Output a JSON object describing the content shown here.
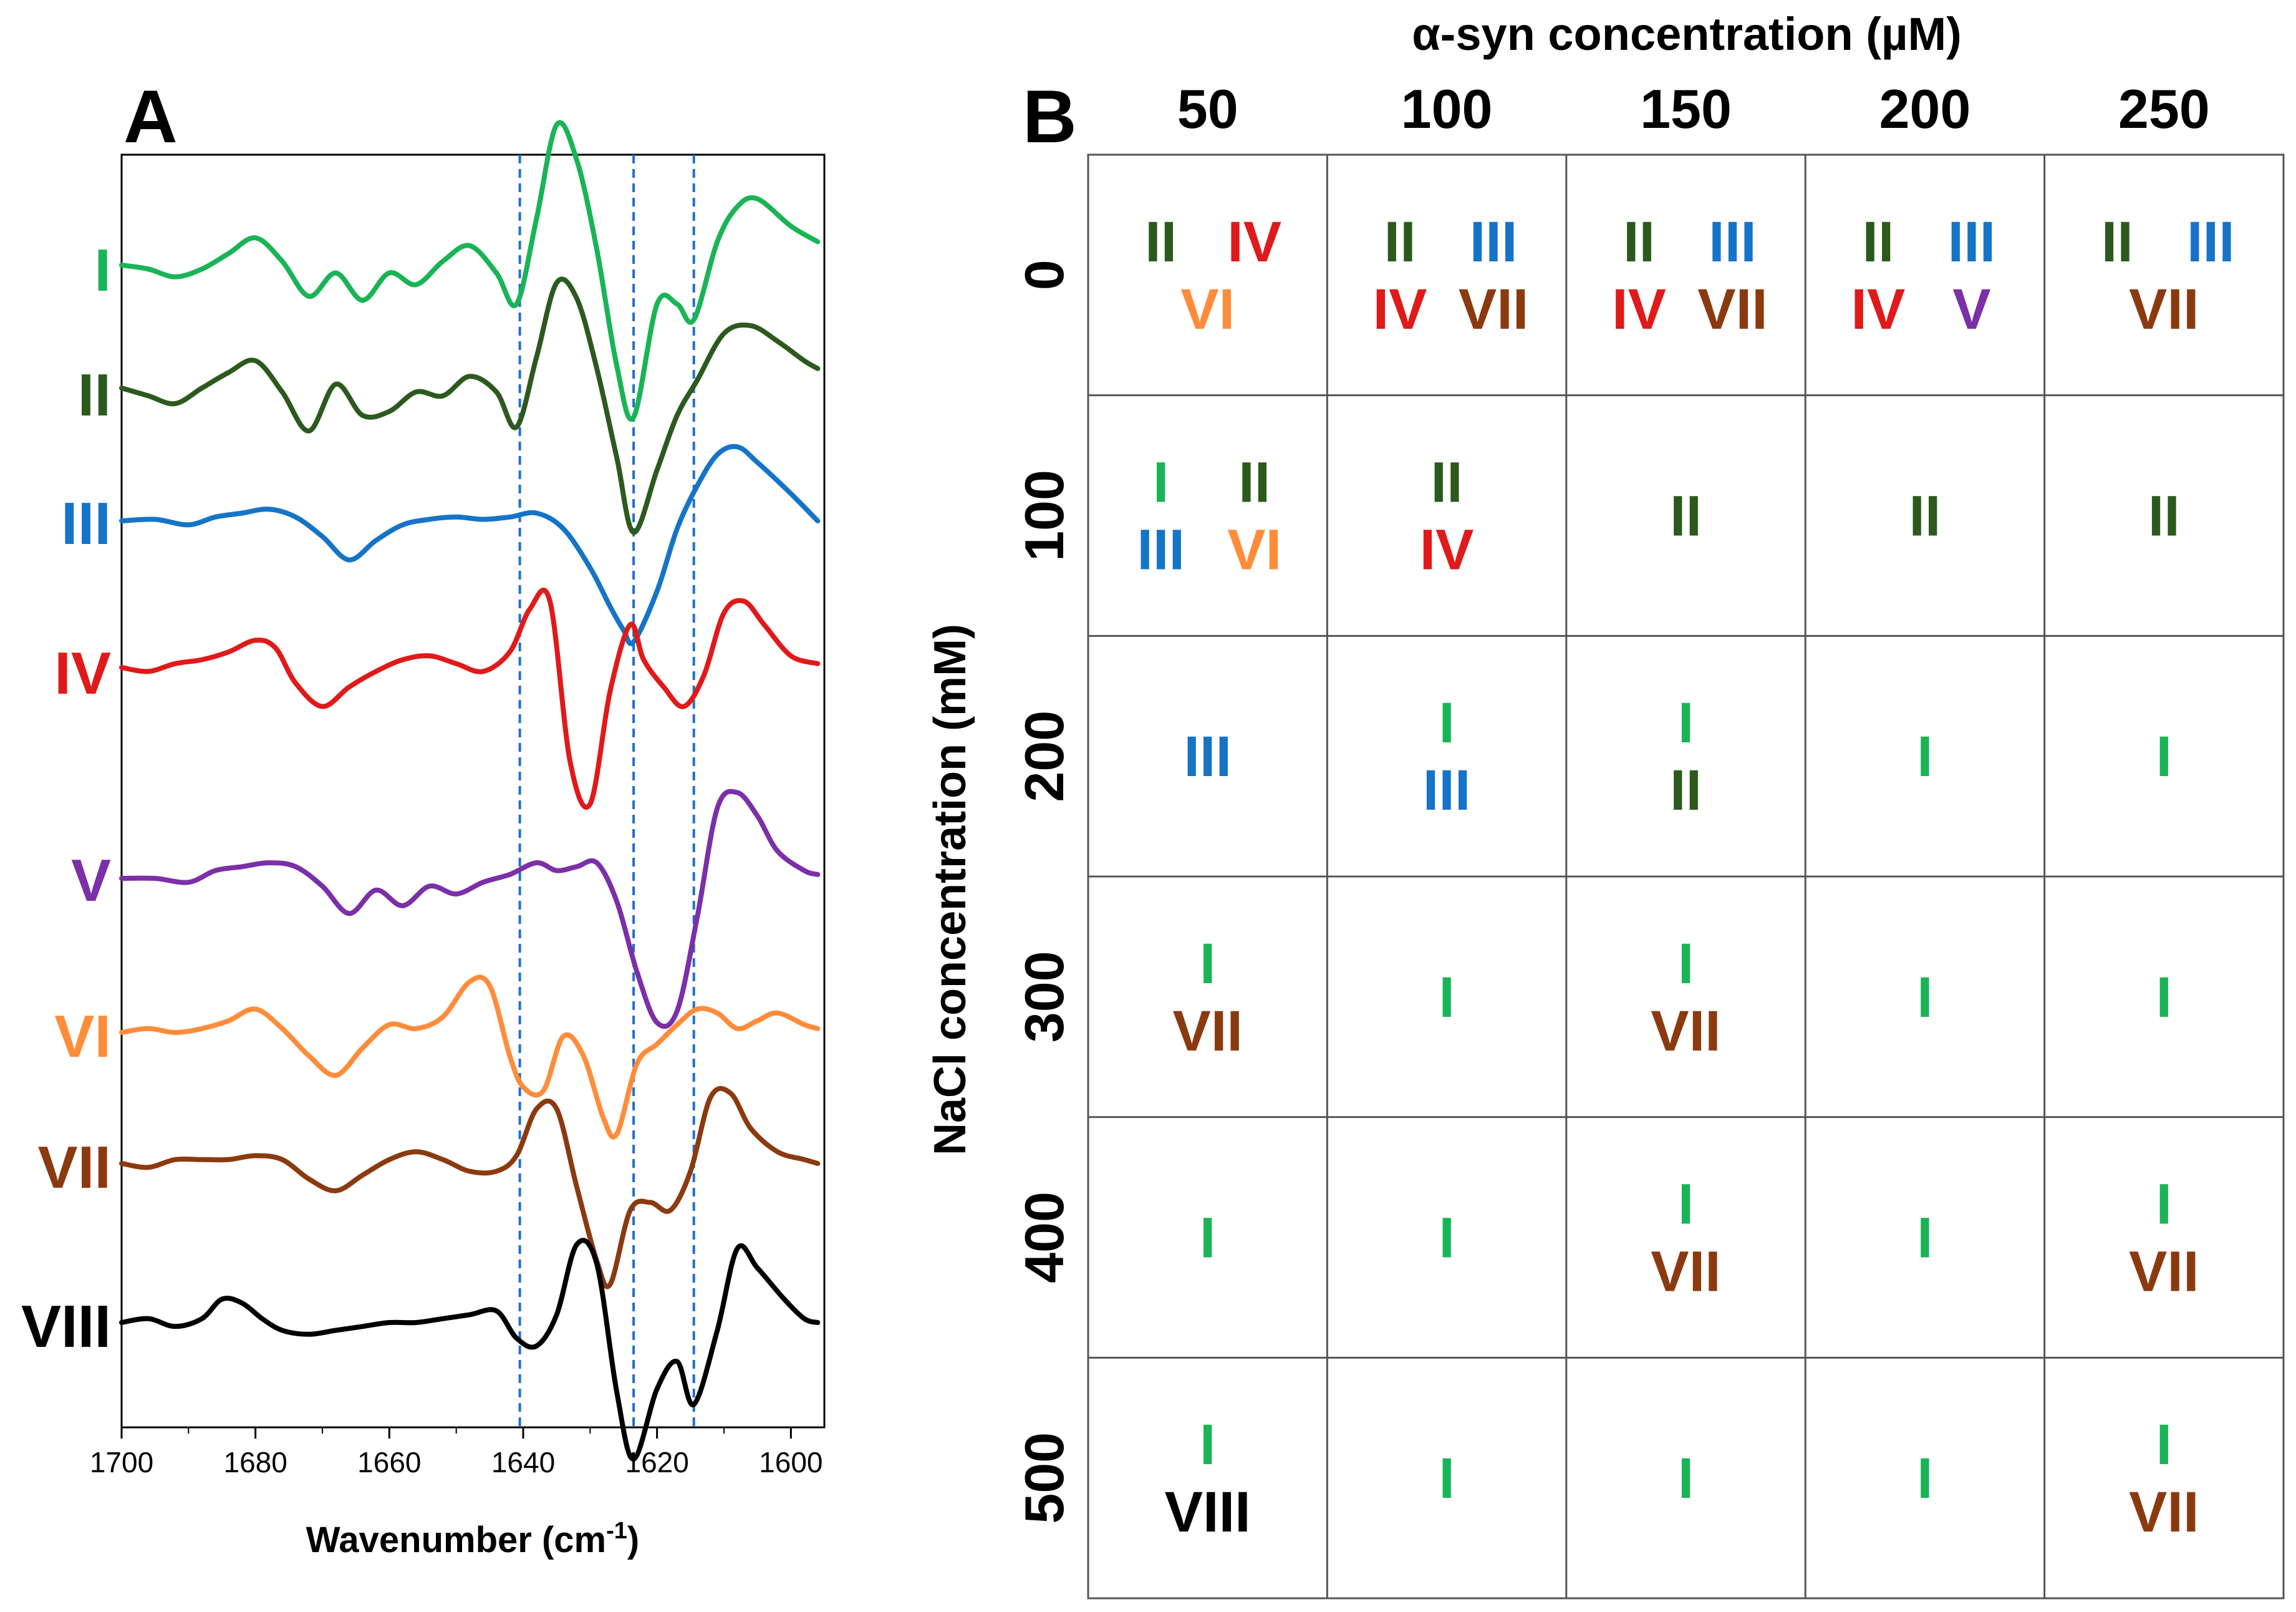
{
  "chart_data": [
    {
      "panel": "A",
      "type": "line",
      "xlabel": "Wavenumber (cm",
      "xlabel_sup": "-1",
      "xlabel_close": ")",
      "xlim": [
        1700,
        1595
      ],
      "x_ticks": [
        1700,
        1680,
        1660,
        1640,
        1620,
        1600
      ],
      "reference_lines": [
        1640.5,
        1623.5,
        1614.5
      ],
      "series": [
        {
          "name": "I",
          "color": "#19b456",
          "x": [
            1700,
            1696,
            1692,
            1688,
            1684,
            1680,
            1676,
            1672,
            1668,
            1664,
            1660,
            1656,
            1652,
            1648,
            1644,
            1641,
            1638,
            1635,
            1632,
            1629,
            1626,
            1623.5,
            1620,
            1617,
            1614.5,
            1611,
            1608,
            1605,
            1600,
            1596
          ],
          "y": [
            0,
            -0.05,
            -0.15,
            -0.05,
            0.15,
            0.35,
            0.05,
            -0.4,
            -0.1,
            -0.45,
            -0.1,
            -0.25,
            0.05,
            0.25,
            -0.1,
            -0.5,
            0.6,
            1.8,
            1.35,
            0.2,
            -1.3,
            -1.95,
            -0.5,
            -0.5,
            -0.7,
            0.3,
            0.75,
            0.85,
            0.5,
            0.3
          ]
        },
        {
          "name": "II",
          "color": "#2c5a1e",
          "x": [
            1700,
            1696,
            1692,
            1688,
            1684,
            1680,
            1676,
            1672,
            1668,
            1664,
            1660,
            1656,
            1652,
            1648,
            1644,
            1641,
            1638,
            1635,
            1632,
            1629,
            1626,
            1623.5,
            1620,
            1617,
            1614,
            1610,
            1606,
            1602,
            1598,
            1596
          ],
          "y": [
            0,
            -0.1,
            -0.2,
            0,
            0.2,
            0.35,
            -0.05,
            -0.55,
            0.05,
            -0.35,
            -0.3,
            -0.05,
            -0.1,
            0.15,
            -0.05,
            -0.5,
            0.4,
            1.35,
            1.15,
            0.25,
            -0.9,
            -1.85,
            -1.05,
            -0.35,
            0.1,
            0.7,
            0.8,
            0.6,
            0.35,
            0.25
          ]
        },
        {
          "name": "III",
          "color": "#1574c8",
          "x": [
            1700,
            1695,
            1690,
            1686,
            1682,
            1678,
            1674,
            1670,
            1666,
            1662,
            1658,
            1654,
            1650,
            1646,
            1642,
            1638,
            1634,
            1630,
            1627,
            1625,
            1623.5,
            1620,
            1617,
            1614,
            1611,
            1608,
            1605,
            1600,
            1596
          ],
          "y": [
            0,
            0.02,
            -0.05,
            0.05,
            0.1,
            0.15,
            0.05,
            -0.2,
            -0.5,
            -0.25,
            -0.05,
            0.02,
            0.05,
            0.02,
            0.05,
            0.1,
            -0.1,
            -0.6,
            -1.1,
            -1.4,
            -1.55,
            -0.9,
            -0.1,
            0.45,
            0.85,
            0.95,
            0.75,
            0.35,
            0
          ]
        },
        {
          "name": "IV",
          "color": "#e01a1a",
          "x": [
            1700,
            1696,
            1692,
            1688,
            1684,
            1680,
            1677,
            1674,
            1670,
            1666,
            1662,
            1658,
            1654,
            1650,
            1646,
            1642,
            1639,
            1636,
            1633,
            1630,
            1627,
            1624,
            1622,
            1619,
            1616,
            1613,
            1610,
            1607,
            1604,
            1600,
            1596
          ],
          "y": [
            0,
            -0.05,
            0.05,
            0.1,
            0.2,
            0.35,
            0.25,
            -0.2,
            -0.5,
            -0.25,
            -0.05,
            0.1,
            0.15,
            0.05,
            -0.05,
            0.2,
            0.75,
            0.85,
            -1.2,
            -1.75,
            -0.3,
            0.55,
            0.1,
            -0.25,
            -0.5,
            -0.1,
            0.7,
            0.85,
            0.55,
            0.15,
            0.05
          ]
        },
        {
          "name": "V",
          "color": "#7b2fa8",
          "x": [
            1700,
            1695,
            1690,
            1686,
            1682,
            1678,
            1674,
            1670,
            1666,
            1662,
            1658,
            1654,
            1650,
            1646,
            1642,
            1638,
            1635,
            1632,
            1629,
            1626,
            1623,
            1620,
            1617,
            1614,
            1611,
            1608,
            1605,
            1602,
            1598,
            1596
          ],
          "y": [
            0,
            0,
            -0.05,
            0.1,
            0.15,
            0.2,
            0.15,
            -0.1,
            -0.45,
            -0.15,
            -0.35,
            -0.1,
            -0.2,
            -0.05,
            0.05,
            0.2,
            0.1,
            0.15,
            0.2,
            -0.3,
            -1.2,
            -1.85,
            -1.7,
            -0.5,
            0.9,
            1.1,
            0.8,
            0.35,
            0.1,
            0.05
          ]
        },
        {
          "name": "VI",
          "color": "#ff8c3a",
          "x": [
            1700,
            1696,
            1692,
            1688,
            1684,
            1680,
            1676,
            1672,
            1668,
            1664,
            1660,
            1656,
            1652,
            1648,
            1645,
            1642,
            1640,
            1637,
            1634,
            1631,
            1628,
            1626,
            1623,
            1620,
            1617,
            1614,
            1611,
            1608,
            1605,
            1602,
            1598,
            1596
          ],
          "y": [
            0,
            0.05,
            0,
            0.05,
            0.15,
            0.3,
            0.05,
            -0.3,
            -0.55,
            -0.2,
            0.1,
            0.05,
            0.2,
            0.65,
            0.6,
            -0.3,
            -0.7,
            -0.75,
            -0.05,
            -0.3,
            -1.1,
            -1.3,
            -0.4,
            -0.15,
            0.1,
            0.3,
            0.25,
            0.05,
            0.15,
            0.25,
            0.1,
            0.05
          ]
        },
        {
          "name": "VII",
          "color": "#8b3a10",
          "x": [
            1700,
            1696,
            1692,
            1688,
            1684,
            1680,
            1676,
            1672,
            1668,
            1664,
            1660,
            1656,
            1652,
            1648,
            1644,
            1641,
            1638,
            1635,
            1632,
            1629,
            1627,
            1624,
            1621,
            1618,
            1615,
            1612,
            1609,
            1606,
            1602,
            1598,
            1596
          ],
          "y": [
            0,
            -0.05,
            0.05,
            0.05,
            0.05,
            0.1,
            0.05,
            -0.2,
            -0.35,
            -0.15,
            0.05,
            0.15,
            0.05,
            -0.1,
            -0.1,
            0.1,
            0.7,
            0.7,
            -0.3,
            -1.25,
            -1.55,
            -0.6,
            -0.5,
            -0.6,
            -0.1,
            0.85,
            0.9,
            0.45,
            0.15,
            0.05,
            0
          ]
        },
        {
          "name": "VIII",
          "color": "#000000",
          "x": [
            1700,
            1696,
            1692,
            1688,
            1685,
            1682,
            1679,
            1676,
            1672,
            1668,
            1664,
            1660,
            1656,
            1652,
            1648,
            1644,
            1641,
            1638,
            1635,
            1632,
            1629,
            1626,
            1623.5,
            1620,
            1617,
            1614.5,
            1611,
            1608,
            1605,
            1601,
            1598,
            1596
          ],
          "y": [
            0,
            0.05,
            -0.05,
            0.05,
            0.3,
            0.25,
            0.05,
            -0.1,
            -0.15,
            -0.1,
            -0.05,
            0,
            0,
            0.05,
            0.1,
            0.15,
            -0.2,
            -0.3,
            0.1,
            1.0,
            0.75,
            -0.9,
            -1.75,
            -0.85,
            -0.5,
            -1.05,
            -0.1,
            0.95,
            0.7,
            0.3,
            0.05,
            0
          ]
        }
      ]
    },
    {
      "panel": "B",
      "type": "table",
      "title": "α-syn concentration (µM)",
      "column_labels": [
        "50",
        "100",
        "150",
        "200",
        "250"
      ],
      "row_title": "NaCl concentration (mM)",
      "row_labels": [
        "0",
        "100",
        "200",
        "300",
        "400",
        "500"
      ],
      "cells": [
        [
          [
            [
              "II",
              "IV"
            ],
            [
              "VI"
            ]
          ],
          [
            [
              "II",
              "III"
            ],
            [
              "IV",
              "VII"
            ]
          ],
          [
            [
              "II",
              "III"
            ],
            [
              "IV",
              "VII"
            ]
          ],
          [
            [
              "II",
              "III"
            ],
            [
              "IV",
              "V"
            ]
          ],
          [
            [
              "II",
              "III"
            ],
            [
              "VII"
            ]
          ]
        ],
        [
          [
            [
              "I",
              "II"
            ],
            [
              "III",
              "VI"
            ]
          ],
          [
            [
              "II"
            ],
            [
              "IV"
            ]
          ],
          [
            [
              "II"
            ]
          ],
          [
            [
              "II"
            ]
          ],
          [
            [
              "II"
            ]
          ]
        ],
        [
          [
            [
              "III"
            ]
          ],
          [
            [
              "I"
            ],
            [
              "III"
            ]
          ],
          [
            [
              "I"
            ],
            [
              "II"
            ]
          ],
          [
            [
              "I"
            ]
          ],
          [
            [
              "I"
            ]
          ]
        ],
        [
          [
            [
              "I"
            ],
            [
              "VII"
            ]
          ],
          [
            [
              "I"
            ]
          ],
          [
            [
              "I"
            ],
            [
              "VII"
            ]
          ],
          [
            [
              "I"
            ]
          ],
          [
            [
              "I"
            ]
          ]
        ],
        [
          [
            [
              "I"
            ]
          ],
          [
            [
              "I"
            ]
          ],
          [
            [
              "I"
            ],
            [
              "VII"
            ]
          ],
          [
            [
              "I"
            ]
          ],
          [
            [
              "I"
            ],
            [
              "VII"
            ]
          ]
        ],
        [
          [
            [
              "I"
            ],
            [
              "VIII"
            ]
          ],
          [
            [
              "I"
            ]
          ],
          [
            [
              "I"
            ]
          ],
          [
            [
              "I"
            ]
          ],
          [
            [
              "I"
            ],
            [
              "VII"
            ]
          ]
        ]
      ]
    }
  ],
  "panel_letters": {
    "a": "A",
    "b": "B"
  },
  "colors": {
    "I": "#19b456",
    "II": "#2c5a1e",
    "III": "#1574c8",
    "IV": "#e01a1a",
    "V": "#7b2fa8",
    "VI": "#ff8c3a",
    "VII": "#8b3a10",
    "VIII": "#000000",
    "reference_line": "#1f6fd0",
    "grid": "#555555"
  }
}
